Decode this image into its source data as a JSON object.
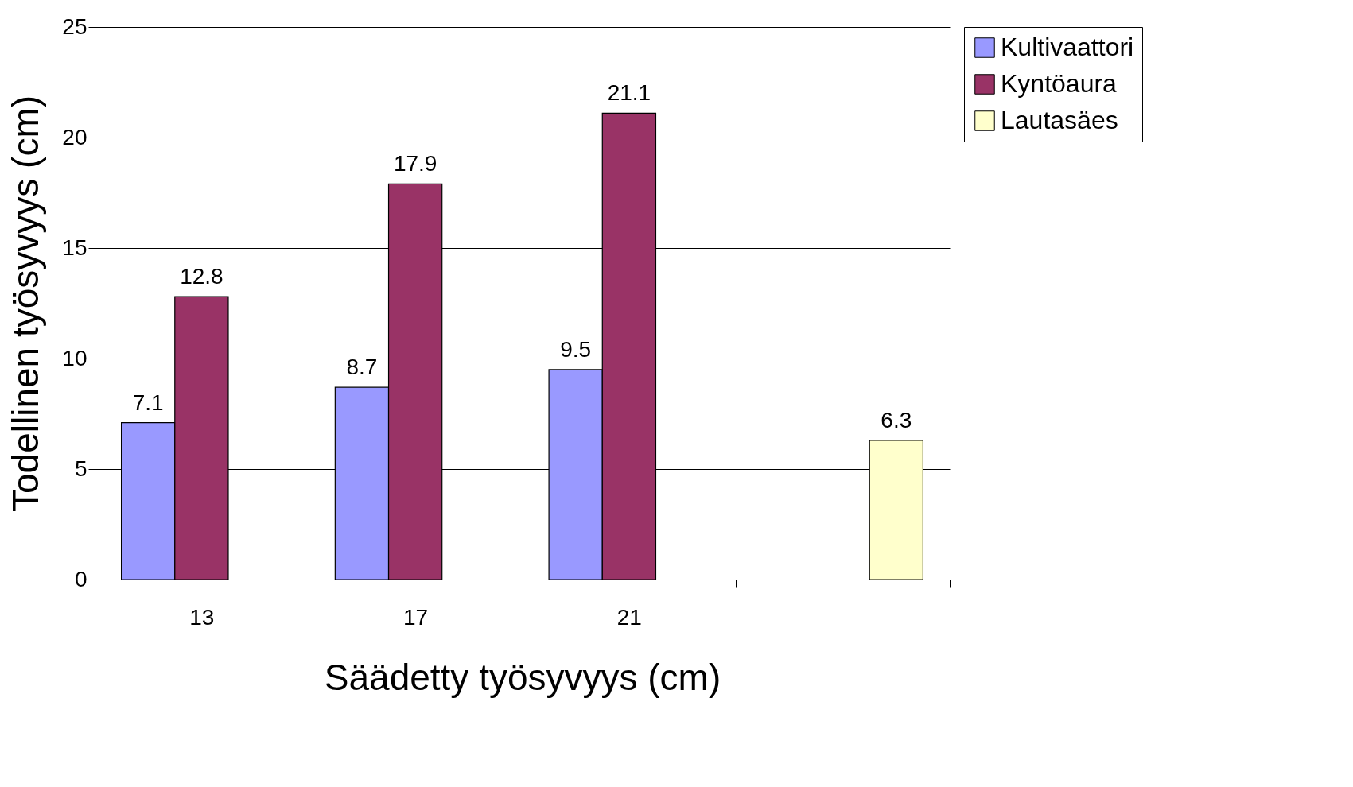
{
  "chart_data": {
    "type": "bar",
    "xlabel": "Säädetty työsyvyys (cm)",
    "ylabel": "Todellinen työsyvyys (cm)",
    "categories": [
      "13",
      "17",
      "21",
      null
    ],
    "series": [
      {
        "name": "Kultivaattori",
        "color": "#9999ff",
        "values": [
          7.1,
          8.7,
          9.5,
          null
        ]
      },
      {
        "name": "Kyntöaura",
        "color": "#993366",
        "values": [
          12.8,
          17.9,
          21.1,
          null
        ]
      },
      {
        "name": "Lautasäes",
        "color": "#ffffcc",
        "values": [
          null,
          null,
          null,
          6.3
        ]
      }
    ],
    "ylim": [
      0,
      25
    ],
    "yticks": [
      0,
      5,
      10,
      15,
      20,
      25
    ],
    "grid": "y",
    "legend": "right",
    "data_labels": true
  }
}
